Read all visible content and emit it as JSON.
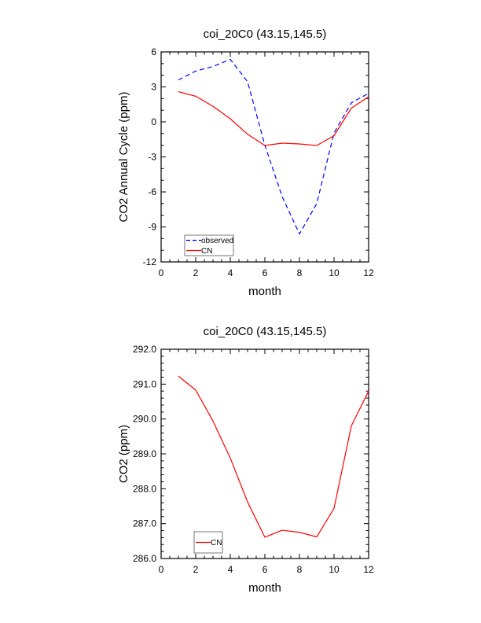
{
  "chart_data": [
    {
      "type": "line",
      "title": "coi_20C0 (43.15,145.5)",
      "xlabel": "month",
      "ylabel": "CO2 Annual Cycle (ppm)",
      "xlim": [
        0,
        12
      ],
      "ylim": [
        -12,
        6
      ],
      "xticks": [
        "0",
        "2",
        "4",
        "6",
        "8",
        "10",
        "12"
      ],
      "yticks": [
        "-12",
        "-9",
        "-6",
        "-3",
        "0",
        "3",
        "6"
      ],
      "x": [
        1,
        2,
        3,
        4,
        5,
        6,
        7,
        8,
        9,
        10,
        11,
        12
      ],
      "series": [
        {
          "name": "observed",
          "color": "#0000ff",
          "dash": true,
          "values": [
            3.6,
            4.36,
            4.75,
            5.36,
            3.45,
            -2.0,
            -6.4,
            -9.6,
            -7.0,
            -0.95,
            1.64,
            2.45
          ]
        },
        {
          "name": "CN",
          "color": "#ff0000",
          "dash": false,
          "values": [
            2.59,
            2.2,
            1.34,
            0.27,
            -1.05,
            -2.02,
            -1.82,
            -1.89,
            -2.02,
            -1.18,
            1.18,
            2.16
          ]
        }
      ],
      "legend_position": "bottom-left",
      "grid": false
    },
    {
      "type": "line",
      "title": "coi_20C0 (43.15,145.5)",
      "xlabel": "month",
      "ylabel": "CO2 (ppm)",
      "xlim": [
        0,
        12
      ],
      "ylim": [
        286,
        292
      ],
      "xticks": [
        "0",
        "2",
        "4",
        "6",
        "8",
        "10",
        "12"
      ],
      "yticks": [
        "286.0",
        "287.0",
        "288.0",
        "289.0",
        "290.0",
        "291.0",
        "292.0"
      ],
      "x": [
        1,
        2,
        3,
        4,
        5,
        6,
        7,
        8,
        9,
        10,
        11,
        12
      ],
      "series": [
        {
          "name": "CN",
          "color": "#ff0000",
          "dash": false,
          "values": [
            291.23,
            290.83,
            289.94,
            288.88,
            287.62,
            286.61,
            286.81,
            286.75,
            286.62,
            287.44,
            289.8,
            290.8
          ]
        }
      ],
      "legend_position": "bottom-left",
      "grid": false
    }
  ]
}
